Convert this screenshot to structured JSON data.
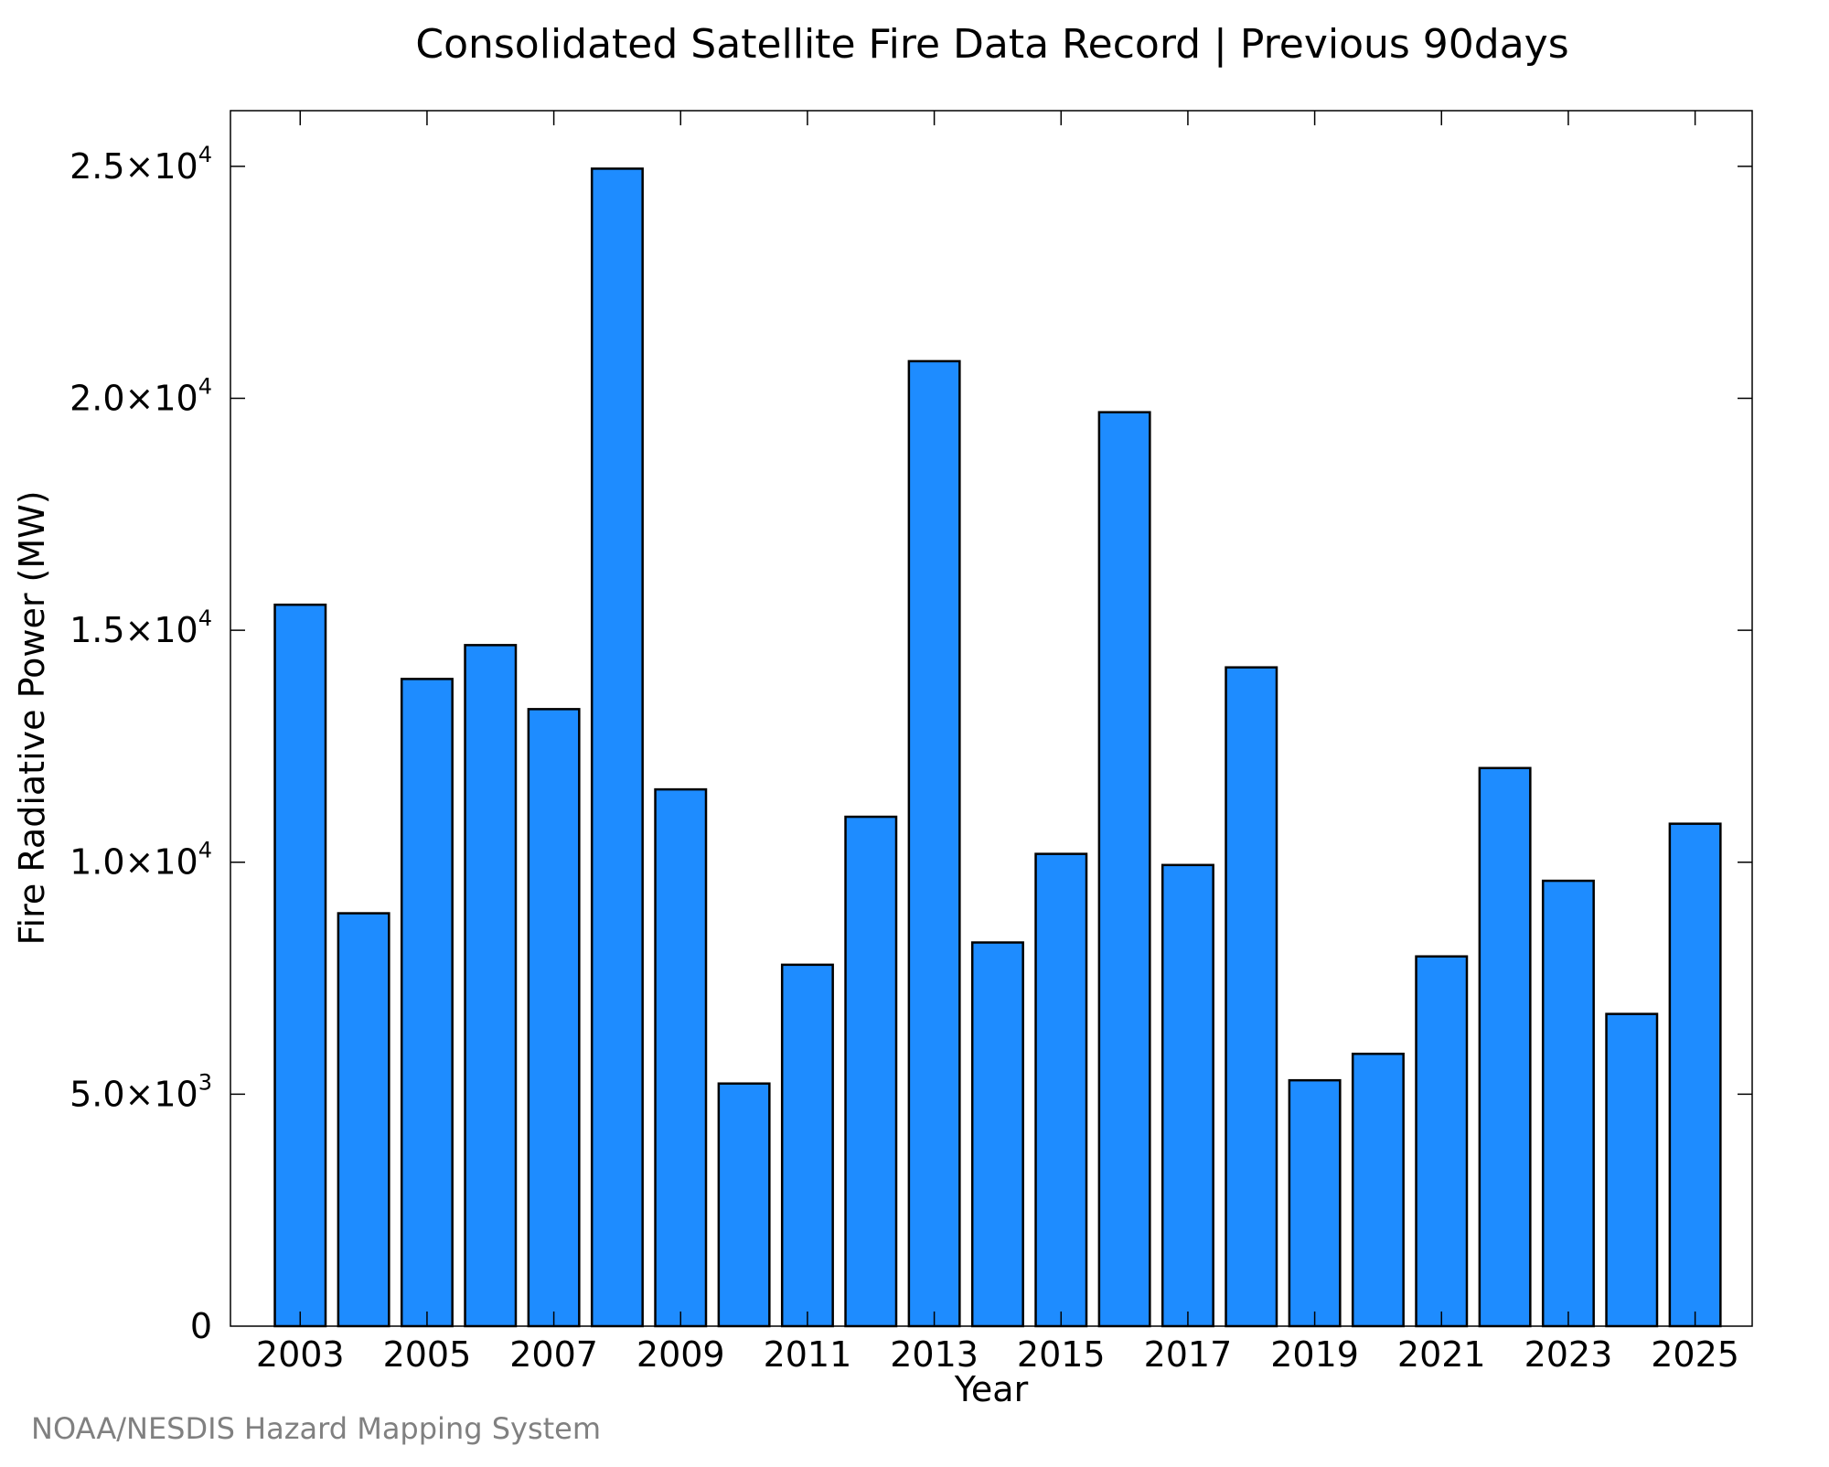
{
  "chart_data": {
    "type": "bar",
    "title": "Consolidated Satellite Fire Data Record | Previous 90days",
    "xlabel": "Year",
    "ylabel": "Fire Radiative Power (MW)",
    "source": "NOAA/NESDIS Hazard Mapping System",
    "bar_color": "#1e8cff",
    "bar_edge_color": "#000000",
    "grid": false,
    "legend": false,
    "ylim": [
      0,
      26200
    ],
    "xlim": [
      2001.9,
      2025.9
    ],
    "categories": [
      2003,
      2004,
      2005,
      2006,
      2007,
      2008,
      2009,
      2010,
      2011,
      2012,
      2013,
      2014,
      2015,
      2016,
      2017,
      2018,
      2019,
      2020,
      2021,
      2022,
      2023,
      2024,
      2025
    ],
    "values": [
      15550,
      8900,
      13950,
      14680,
      13300,
      24950,
      11570,
      5230,
      7790,
      10980,
      20800,
      8270,
      10180,
      19700,
      9940,
      14200,
      5300,
      5870,
      7970,
      12030,
      9600,
      6730,
      10830
    ],
    "x_ticks": [
      {
        "value": 2003,
        "label": "2003"
      },
      {
        "value": 2005,
        "label": "2005"
      },
      {
        "value": 2007,
        "label": "2007"
      },
      {
        "value": 2009,
        "label": "2009"
      },
      {
        "value": 2011,
        "label": "2011"
      },
      {
        "value": 2013,
        "label": "2013"
      },
      {
        "value": 2015,
        "label": "2015"
      },
      {
        "value": 2017,
        "label": "2017"
      },
      {
        "value": 2019,
        "label": "2019"
      },
      {
        "value": 2021,
        "label": "2021"
      },
      {
        "value": 2023,
        "label": "2023"
      },
      {
        "value": 2025,
        "label": "2025"
      }
    ],
    "y_ticks": [
      {
        "value": 0,
        "mantissa": "0",
        "exponent": ""
      },
      {
        "value": 5000,
        "mantissa": "5.0×10",
        "exponent": "3"
      },
      {
        "value": 10000,
        "mantissa": "1.0×10",
        "exponent": "4"
      },
      {
        "value": 15000,
        "mantissa": "1.5×10",
        "exponent": "4"
      },
      {
        "value": 20000,
        "mantissa": "2.0×10",
        "exponent": "4"
      },
      {
        "value": 25000,
        "mantissa": "2.5×10",
        "exponent": "4"
      }
    ]
  }
}
